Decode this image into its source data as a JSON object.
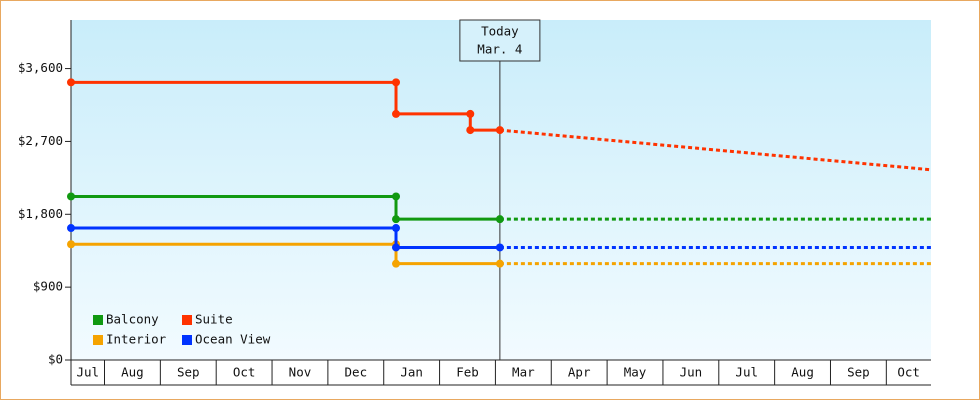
{
  "chart_data": {
    "type": "step-line",
    "xlim": [
      0.4,
      15.8
    ],
    "xticks": [
      {
        "value": 0,
        "label": "Jul"
      },
      {
        "value": 1,
        "label": "Aug"
      },
      {
        "value": 2,
        "label": "Sep"
      },
      {
        "value": 3,
        "label": "Oct"
      },
      {
        "value": 4,
        "label": "Nov"
      },
      {
        "value": 5,
        "label": "Dec"
      },
      {
        "value": 6,
        "label": "Jan"
      },
      {
        "value": 7,
        "label": "Feb"
      },
      {
        "value": 8,
        "label": "Mar"
      },
      {
        "value": 9,
        "label": "Apr"
      },
      {
        "value": 10,
        "label": "May"
      },
      {
        "value": 11,
        "label": "Jun"
      },
      {
        "value": 12,
        "label": "Jul"
      },
      {
        "value": 13,
        "label": "Aug"
      },
      {
        "value": 14,
        "label": "Sep"
      },
      {
        "value": 15,
        "label": "Oct"
      }
    ],
    "ylim": [
      0,
      4200
    ],
    "yticks": [
      {
        "value": 0,
        "label": "$0"
      },
      {
        "value": 900,
        "label": "$900"
      },
      {
        "value": 1800,
        "label": "$1,800"
      },
      {
        "value": 2700,
        "label": "$2,700"
      },
      {
        "value": 3600,
        "label": "$3,600"
      }
    ],
    "annotation": {
      "x": 8.08,
      "label": "Today",
      "date": "Mar. 4"
    },
    "legend": "lower-left",
    "series": [
      {
        "name": "Balcony",
        "color": "#119911",
        "x": [
          0.4,
          6.22,
          6.22,
          8.08
        ],
        "values": [
          2020,
          2020,
          1740,
          1740
        ],
        "forecast": {
          "x": [
            8.08,
            15.8
          ],
          "values": [
            1740,
            1740
          ]
        }
      },
      {
        "name": "Suite",
        "color": "#ff3300",
        "x": [
          0.4,
          6.22,
          6.22,
          7.55,
          7.55,
          8.08
        ],
        "values": [
          3430,
          3430,
          3040,
          3040,
          2840,
          2840
        ],
        "forecast": {
          "x": [
            8.08,
            15.8
          ],
          "values": [
            2840,
            2350
          ]
        }
      },
      {
        "name": "Interior",
        "color": "#f5a300",
        "x": [
          0.4,
          6.22,
          6.22,
          8.08
        ],
        "values": [
          1430,
          1430,
          1190,
          1190
        ],
        "forecast": {
          "x": [
            8.08,
            15.8
          ],
          "values": [
            1190,
            1190
          ]
        }
      },
      {
        "name": "Ocean View",
        "color": "#0033ff",
        "x": [
          0.4,
          6.22,
          6.22,
          8.08
        ],
        "values": [
          1630,
          1630,
          1390,
          1390
        ],
        "forecast": {
          "x": [
            8.08,
            15.8
          ],
          "values": [
            1390,
            1390
          ]
        }
      }
    ]
  }
}
